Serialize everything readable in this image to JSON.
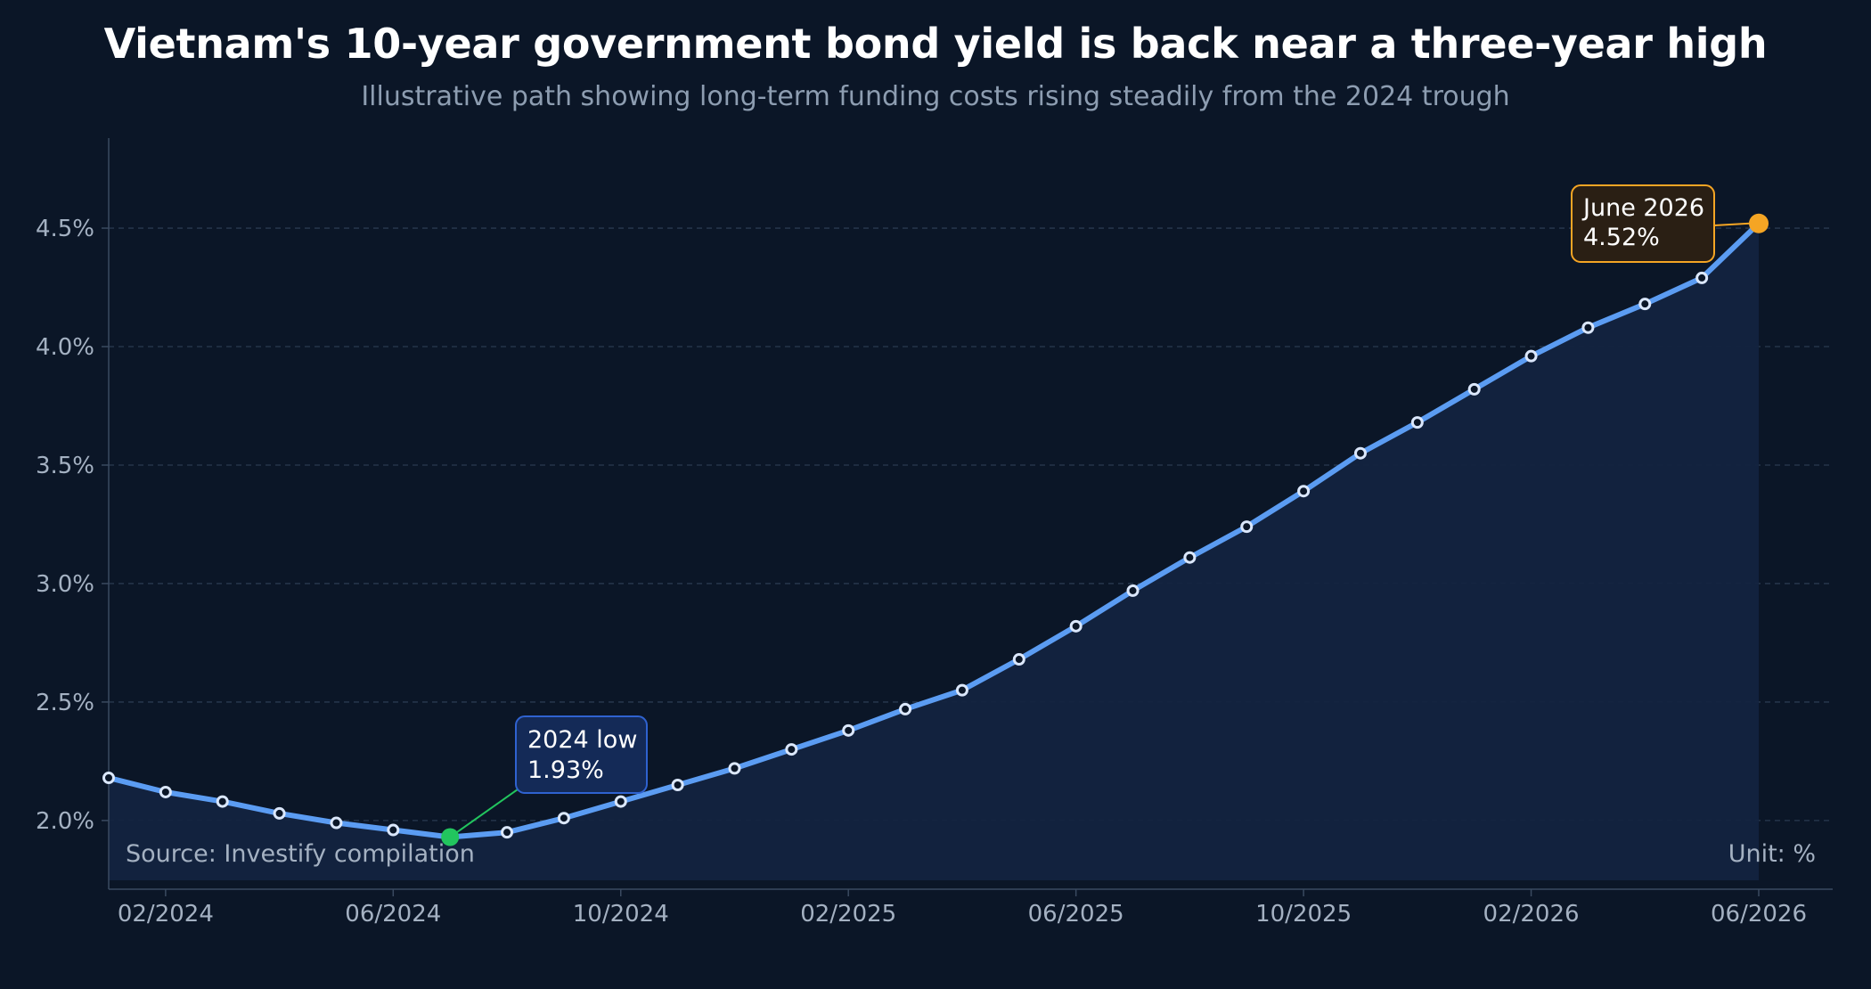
{
  "title": "Vietnam's 10-year government bond yield is back near a three-year high",
  "subtitle": "Illustrative path showing long-term funding costs rising steadily from the 2024 trough",
  "source_note": "Source: Investify compilation",
  "unit_note": "Unit: %",
  "colors": {
    "background": "#0b1627",
    "line": "#5b9cf2",
    "area": "#13233f",
    "low_marker": "#22c55e",
    "high_marker": "#f5a524",
    "grid": "#2a3a50",
    "axis": "#3a4a60"
  },
  "chart_data": {
    "type": "line",
    "x": [
      "2024-01",
      "2024-02",
      "2024-03",
      "2024-04",
      "2024-05",
      "2024-06",
      "2024-07",
      "2024-08",
      "2024-09",
      "2024-10",
      "2024-11",
      "2024-12",
      "2025-01",
      "2025-02",
      "2025-03",
      "2025-04",
      "2025-05",
      "2025-06",
      "2025-07",
      "2025-08",
      "2025-09",
      "2025-10",
      "2025-11",
      "2025-12",
      "2026-01",
      "2026-02",
      "2026-03",
      "2026-04",
      "2026-05",
      "2026-06"
    ],
    "series": [
      {
        "values": [
          2.18,
          2.12,
          2.08,
          2.03,
          1.99,
          1.96,
          1.93,
          1.95,
          2.01,
          2.08,
          2.15,
          2.22,
          2.3,
          2.38,
          2.47,
          2.55,
          2.68,
          2.82,
          2.97,
          3.11,
          3.24,
          3.39,
          3.55,
          3.68,
          3.82,
          3.96,
          4.08,
          4.18,
          4.29,
          4.52
        ]
      }
    ],
    "y_ticks": [
      2.0,
      2.5,
      3.0,
      3.5,
      4.0,
      4.5
    ],
    "y_tick_labels": [
      "2.0%",
      "2.5%",
      "3.0%",
      "3.5%",
      "4.0%",
      "4.5%"
    ],
    "x_ticks": [
      "2024-02",
      "2024-06",
      "2024-10",
      "2025-02",
      "2025-06",
      "2025-10",
      "2026-02",
      "2026-06"
    ],
    "x_tick_labels": [
      "02/2024",
      "06/2024",
      "10/2024",
      "02/2025",
      "06/2025",
      "10/2025",
      "02/2026",
      "06/2026"
    ],
    "ylim": [
      1.71,
      4.88
    ],
    "grid": true,
    "area_fill": true,
    "annotations": [
      {
        "point_index": 6,
        "line1": "2024 low",
        "line2": "1.93%",
        "style": "low",
        "position": "upper-right"
      },
      {
        "point_index": 29,
        "line1": "June 2026",
        "line2": "4.52%",
        "style": "high",
        "position": "left"
      }
    ]
  }
}
